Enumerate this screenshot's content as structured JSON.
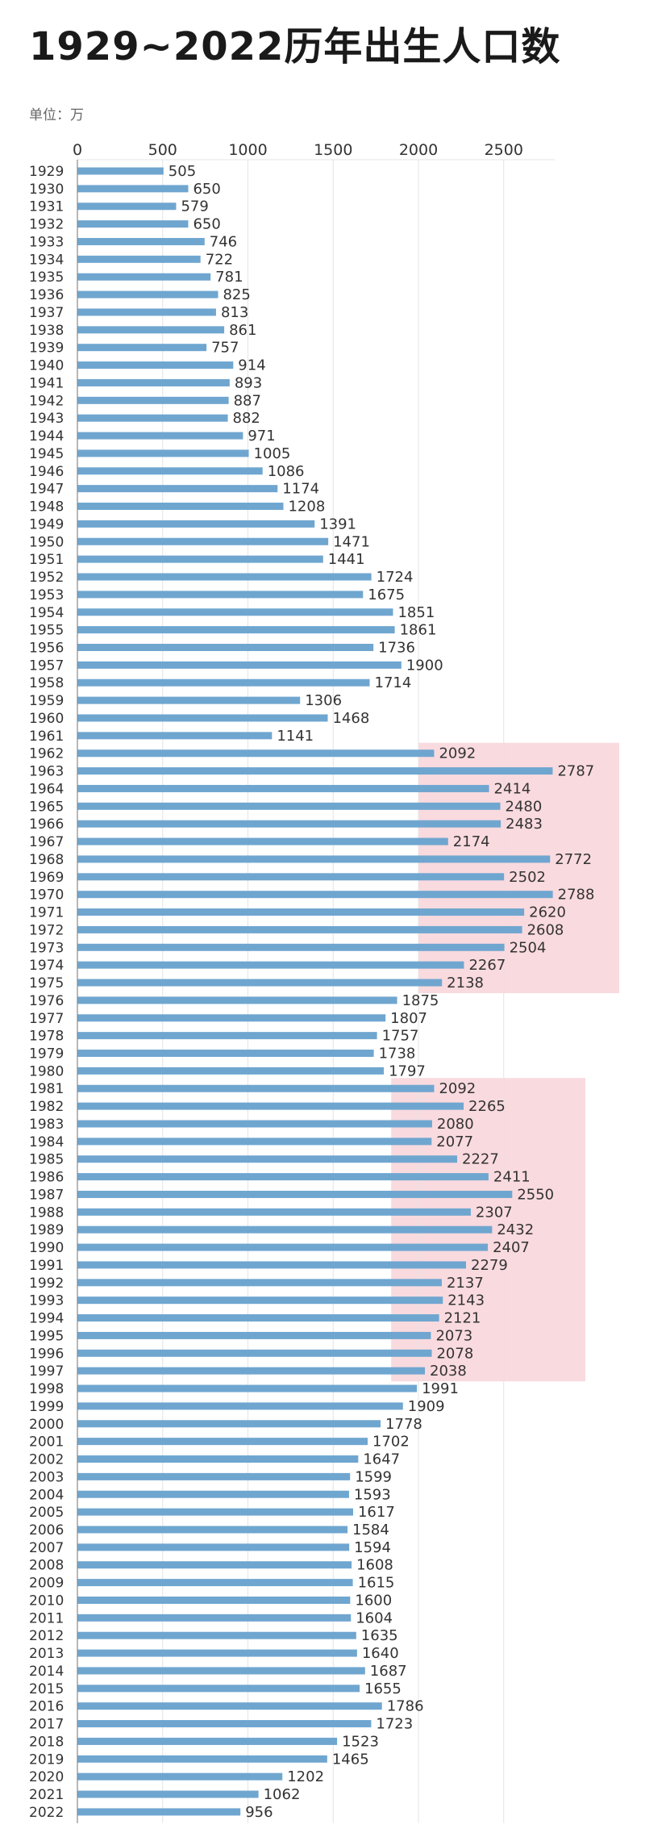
{
  "header": {
    "title": "1929~2022历年出生人口数",
    "unit_label": "单位：万"
  },
  "chart_data": {
    "type": "bar",
    "orientation": "horizontal",
    "title": "1929~2022历年出生人口数",
    "unit": "万",
    "xlim": [
      0,
      2800
    ],
    "xticks": [
      0,
      500,
      1000,
      1500,
      2000,
      2500
    ],
    "grid": true,
    "categories": [
      "1929",
      "1930",
      "1931",
      "1932",
      "1933",
      "1934",
      "1935",
      "1936",
      "1937",
      "1938",
      "1939",
      "1940",
      "1941",
      "1942",
      "1943",
      "1944",
      "1945",
      "1946",
      "1947",
      "1948",
      "1949",
      "1950",
      "1951",
      "1952",
      "1953",
      "1954",
      "1955",
      "1956",
      "1957",
      "1958",
      "1959",
      "1960",
      "1961",
      "1962",
      "1963",
      "1964",
      "1965",
      "1966",
      "1967",
      "1968",
      "1969",
      "1970",
      "1971",
      "1972",
      "1973",
      "1974",
      "1975",
      "1976",
      "1977",
      "1978",
      "1979",
      "1980",
      "1981",
      "1982",
      "1983",
      "1984",
      "1985",
      "1986",
      "1987",
      "1988",
      "1989",
      "1990",
      "1991",
      "1992",
      "1993",
      "1994",
      "1995",
      "1996",
      "1997",
      "1998",
      "1999",
      "2000",
      "2001",
      "2002",
      "2003",
      "2004",
      "2005",
      "2006",
      "2007",
      "2008",
      "2009",
      "2010",
      "2011",
      "2012",
      "2013",
      "2014",
      "2015",
      "2016",
      "2017",
      "2018",
      "2019",
      "2020",
      "2021",
      "2022"
    ],
    "values": [
      505,
      650,
      579,
      650,
      746,
      722,
      781,
      825,
      813,
      861,
      757,
      914,
      893,
      887,
      882,
      971,
      1005,
      1086,
      1174,
      1208,
      1391,
      1471,
      1441,
      1724,
      1675,
      1851,
      1861,
      1736,
      1900,
      1714,
      1306,
      1468,
      1141,
      2092,
      2787,
      2414,
      2480,
      2483,
      2174,
      2772,
      2502,
      2788,
      2620,
      2608,
      2504,
      2267,
      2138,
      1875,
      1807,
      1757,
      1738,
      1797,
      2092,
      2265,
      2080,
      2077,
      2227,
      2411,
      2550,
      2307,
      2432,
      2407,
      2279,
      2137,
      2143,
      2121,
      2073,
      2078,
      2038,
      1991,
      1909,
      1778,
      1702,
      1647,
      1599,
      1593,
      1617,
      1584,
      1594,
      1608,
      1615,
      1600,
      1604,
      1635,
      1640,
      1687,
      1655,
      1786,
      1723,
      1523,
      1465,
      1202,
      1062,
      956
    ],
    "highlights": [
      {
        "from": "1962",
        "to": "1975"
      },
      {
        "from": "1981",
        "to": "1997"
      }
    ],
    "colors": {
      "bar": "#6fa6d0",
      "highlight": "#f3b6bf"
    }
  }
}
